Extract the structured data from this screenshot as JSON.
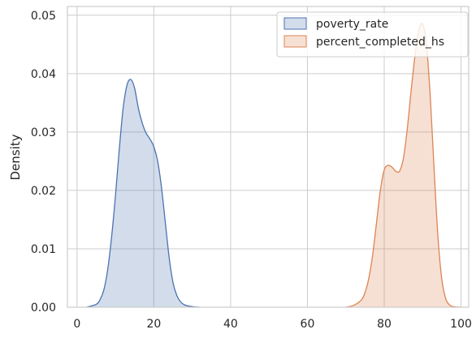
{
  "chart_data": {
    "type": "area",
    "ylabel": "Density",
    "xlim": [
      -2.5,
      102
    ],
    "ylim": [
      0,
      0.0515
    ],
    "x_ticks": [
      "0",
      "20",
      "40",
      "60",
      "80",
      "100"
    ],
    "y_ticks": [
      "0.00",
      "0.01",
      "0.02",
      "0.03",
      "0.04",
      "0.05"
    ],
    "grid": true,
    "legend_position": "top-right",
    "series": [
      {
        "name": "poverty_rate",
        "stroke": "#4c72b0",
        "fill": "#4c72b0",
        "x": [
          2.5,
          5,
          6,
          7,
          8,
          9,
          10,
          11,
          12,
          13,
          14,
          15,
          16,
          17,
          18,
          19,
          20,
          21,
          22,
          23,
          24,
          25,
          26,
          27,
          28,
          30,
          32
        ],
        "y": [
          0.0,
          0.0005,
          0.0013,
          0.003,
          0.0065,
          0.012,
          0.019,
          0.027,
          0.034,
          0.038,
          0.039,
          0.0375,
          0.034,
          0.0315,
          0.0298,
          0.0288,
          0.0275,
          0.025,
          0.0205,
          0.0145,
          0.0085,
          0.0042,
          0.002,
          0.0009,
          0.0004,
          0.0001,
          0.0
        ]
      },
      {
        "name": "percent_completed_hs",
        "stroke": "#dd8452",
        "fill": "#dd8452",
        "x": [
          70,
          72,
          74,
          75,
          76,
          77,
          78,
          79,
          80,
          81,
          82,
          83,
          84,
          85,
          86,
          87,
          88,
          89,
          90,
          91,
          92,
          93,
          94,
          95,
          96,
          97,
          98,
          100
        ],
        "y": [
          0.0,
          0.0003,
          0.0012,
          0.0025,
          0.005,
          0.009,
          0.0145,
          0.02,
          0.0235,
          0.0243,
          0.024,
          0.0233,
          0.0233,
          0.0255,
          0.0305,
          0.037,
          0.043,
          0.0473,
          0.0485,
          0.045,
          0.036,
          0.0235,
          0.012,
          0.0048,
          0.0015,
          0.0004,
          0.0001,
          0.0
        ]
      }
    ]
  }
}
